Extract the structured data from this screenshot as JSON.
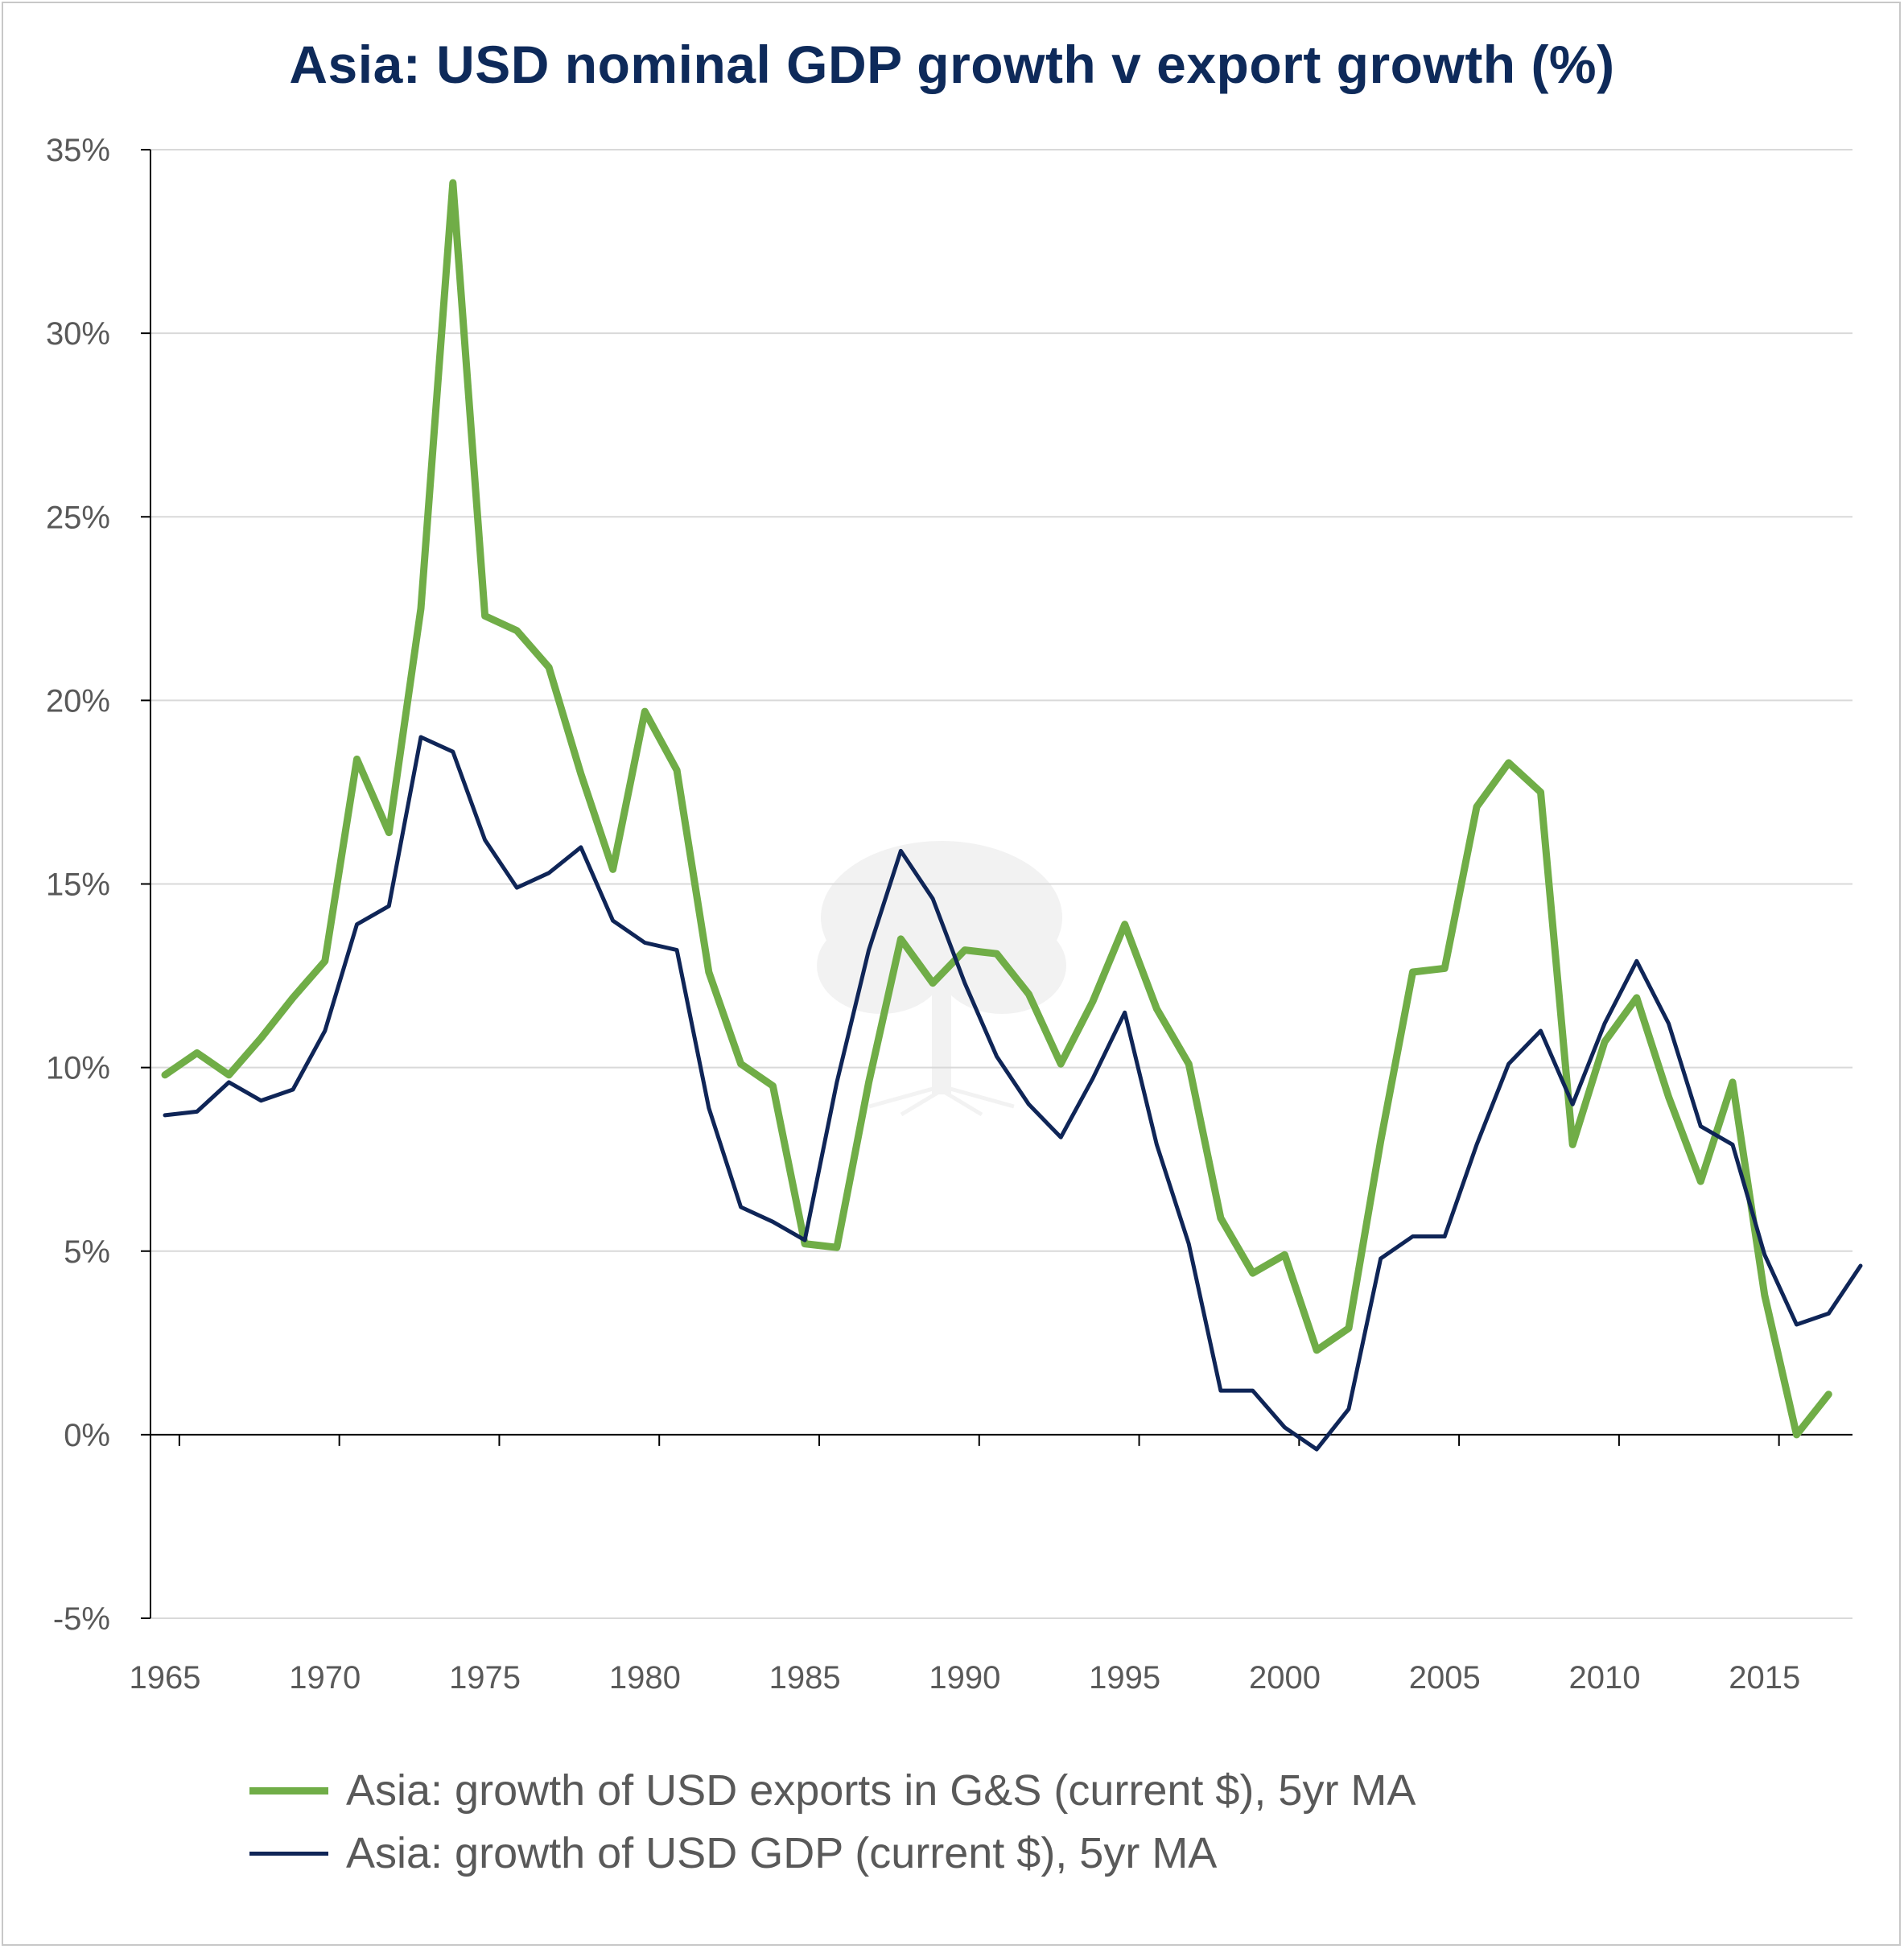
{
  "chart_data": {
    "type": "line",
    "title": "Asia: USD nominal GDP growth v export growth (%)",
    "xlabel": "",
    "ylabel": "",
    "x": [
      1965,
      1966,
      1967,
      1968,
      1969,
      1970,
      1971,
      1972,
      1973,
      1974,
      1975,
      1976,
      1977,
      1978,
      1979,
      1980,
      1981,
      1982,
      1983,
      1984,
      1985,
      1986,
      1987,
      1988,
      1989,
      1990,
      1991,
      1992,
      1993,
      1994,
      1995,
      1996,
      1997,
      1998,
      1999,
      2000,
      2001,
      2002,
      2003,
      2004,
      2005,
      2006,
      2007,
      2008,
      2009,
      2010,
      2011,
      2012,
      2013,
      2014,
      2015,
      2016,
      2017,
      2018
    ],
    "xticks": [
      "1965",
      "1970",
      "1975",
      "1980",
      "1985",
      "1990",
      "1995",
      "2000",
      "2005",
      "2010",
      "2015"
    ],
    "yticks": [
      "-5%",
      "0%",
      "5%",
      "10%",
      "15%",
      "20%",
      "25%",
      "30%",
      "35%"
    ],
    "ylim": [
      -5,
      35
    ],
    "grid": true,
    "legend_position": "bottom",
    "series": [
      {
        "name": "Asia: growth of USD exports in G&S (current $), 5yr MA",
        "color": "#70ad47",
        "values": [
          9.8,
          10.4,
          9.8,
          10.8,
          11.9,
          12.9,
          18.4,
          16.4,
          22.5,
          34.1,
          22.3,
          21.9,
          20.9,
          18.0,
          15.4,
          19.7,
          18.1,
          12.6,
          10.1,
          9.5,
          5.2,
          5.1,
          9.6,
          13.5,
          12.3,
          13.2,
          13.1,
          12.0,
          10.1,
          11.8,
          13.9,
          11.6,
          10.1,
          5.9,
          4.4,
          4.9,
          2.3,
          2.9,
          8.0,
          12.6,
          12.7,
          17.1,
          18.3,
          17.5,
          7.9,
          10.7,
          11.9,
          9.2,
          6.9,
          9.6,
          3.8,
          0.0,
          1.1,
          null
        ]
      },
      {
        "name": "Asia: growth of USD GDP (current $), 5yr MA",
        "color": "#0f2557",
        "values": [
          8.7,
          8.8,
          9.6,
          9.1,
          9.4,
          11.0,
          13.9,
          14.4,
          19.0,
          18.6,
          16.2,
          14.9,
          15.3,
          16.0,
          14.0,
          13.4,
          13.2,
          8.9,
          6.2,
          5.8,
          5.3,
          9.6,
          13.2,
          15.9,
          14.6,
          12.3,
          10.3,
          9.0,
          8.1,
          9.7,
          11.5,
          7.9,
          5.2,
          1.2,
          1.2,
          0.2,
          -0.4,
          0.7,
          4.8,
          5.4,
          5.4,
          7.9,
          10.1,
          11.0,
          9.0,
          11.2,
          12.9,
          11.2,
          8.4,
          7.9,
          4.9,
          3.0,
          3.3,
          4.6
        ]
      }
    ]
  }
}
